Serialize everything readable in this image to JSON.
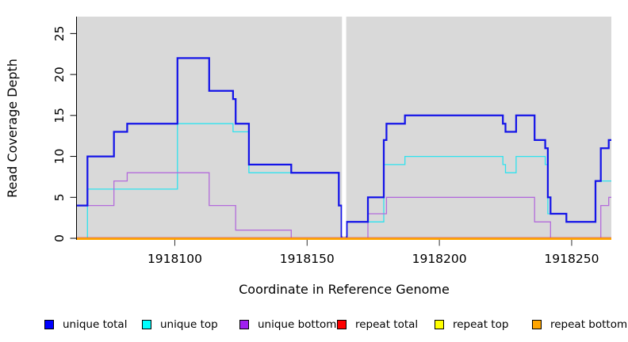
{
  "y_axis": {
    "label": "Read Coverage Depth",
    "ticks": [
      0,
      5,
      10,
      15,
      20,
      25
    ]
  },
  "x_axis": {
    "label": "Coordinate in Reference Genome",
    "ticks": [
      1918100,
      1918150,
      1918200,
      1918250
    ]
  },
  "panel_bg": "#d9d9d9",
  "chart_data": {
    "type": "line",
    "step": true,
    "title": "",
    "xlabel": "Coordinate in Reference Genome",
    "ylabel": "Read Coverage Depth",
    "x_range": [
      1918063,
      1918265
    ],
    "y_range": [
      0,
      27
    ],
    "grid": false,
    "legend_position": "bottom",
    "masked_region_x": [
      1918163.2,
      1918164.8
    ],
    "series": [
      {
        "name": "unique total",
        "color": "#1414e8",
        "steps": [
          [
            1918063,
            4
          ],
          [
            1918067,
            10
          ],
          [
            1918077,
            13
          ],
          [
            1918082,
            14
          ],
          [
            1918101,
            22
          ],
          [
            1918113,
            18
          ],
          [
            1918122,
            17
          ],
          [
            1918123,
            14
          ],
          [
            1918128,
            9
          ],
          [
            1918144,
            8
          ],
          [
            1918162,
            4
          ],
          [
            1918163,
            0
          ],
          [
            1918165,
            2
          ],
          [
            1918173,
            5
          ],
          [
            1918179,
            12
          ],
          [
            1918180,
            14
          ],
          [
            1918187,
            15
          ],
          [
            1918224,
            14
          ],
          [
            1918225,
            13
          ],
          [
            1918229,
            15
          ],
          [
            1918236,
            12
          ],
          [
            1918240,
            11
          ],
          [
            1918241,
            5
          ],
          [
            1918242,
            3
          ],
          [
            1918248,
            2
          ],
          [
            1918259,
            7
          ],
          [
            1918261,
            11
          ],
          [
            1918264,
            12
          ]
        ]
      },
      {
        "name": "unique top",
        "color": "#2ee2ee",
        "steps": [
          [
            1918063,
            0
          ],
          [
            1918067,
            6
          ],
          [
            1918101,
            14
          ],
          [
            1918122,
            13
          ],
          [
            1918128,
            8
          ],
          [
            1918162,
            4
          ],
          [
            1918163,
            0
          ],
          [
            1918165,
            2
          ],
          [
            1918179,
            9
          ],
          [
            1918187,
            10
          ],
          [
            1918224,
            9
          ],
          [
            1918225,
            8
          ],
          [
            1918229,
            10
          ],
          [
            1918240,
            9
          ],
          [
            1918241,
            3
          ],
          [
            1918248,
            2
          ],
          [
            1918259,
            7
          ]
        ]
      },
      {
        "name": "unique bottom",
        "color": "#b36bdb",
        "steps": [
          [
            1918063,
            4
          ],
          [
            1918077,
            7
          ],
          [
            1918082,
            8
          ],
          [
            1918113,
            4
          ],
          [
            1918123,
            1
          ],
          [
            1918144,
            0
          ],
          [
            1918173,
            3
          ],
          [
            1918180,
            5
          ],
          [
            1918236,
            2
          ],
          [
            1918242,
            0
          ],
          [
            1918261,
            4
          ],
          [
            1918264,
            5
          ]
        ]
      },
      {
        "name": "repeat total",
        "color": "#e02244",
        "steps": [
          [
            1918063,
            0
          ]
        ]
      },
      {
        "name": "repeat top",
        "color": "#ffff00",
        "steps": [
          [
            1918063,
            0
          ]
        ]
      },
      {
        "name": "repeat bottom",
        "color": "#ffa500",
        "steps": [
          [
            1918063,
            0
          ]
        ]
      }
    ]
  },
  "legend": {
    "items": [
      {
        "label": "unique total",
        "color": "#0000ff"
      },
      {
        "label": "unique top",
        "color": "#00ffff"
      },
      {
        "label": "unique bottom",
        "color": "#a020f0"
      },
      {
        "label": "repeat total",
        "color": "#ff0000"
      },
      {
        "label": "repeat top",
        "color": "#ffff00"
      },
      {
        "label": "repeat bottom",
        "color": "#ffa500"
      }
    ]
  }
}
